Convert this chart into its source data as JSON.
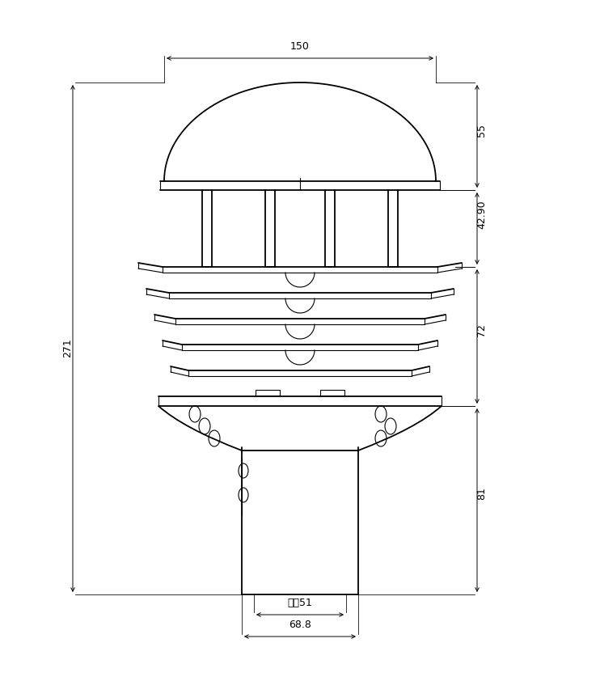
{
  "bg_color": "#ffffff",
  "line_color": "#000000",
  "dim_color": "#000000",
  "fig_width": 7.42,
  "fig_height": 8.42,
  "dpi": 100
}
